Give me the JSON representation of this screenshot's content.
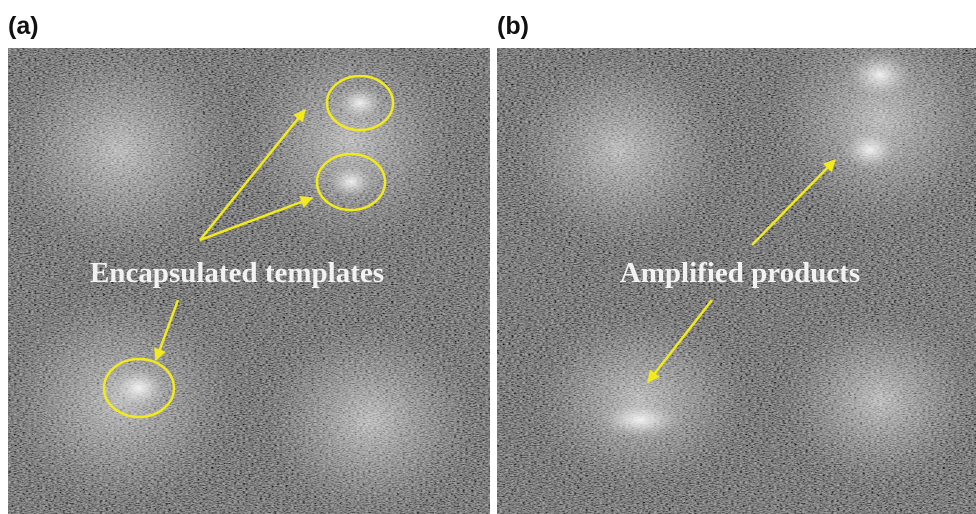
{
  "panels": [
    {
      "label": "(a)",
      "annotation": "Encapsulated templates"
    },
    {
      "label": "(b)",
      "annotation": "Amplified products"
    }
  ]
}
